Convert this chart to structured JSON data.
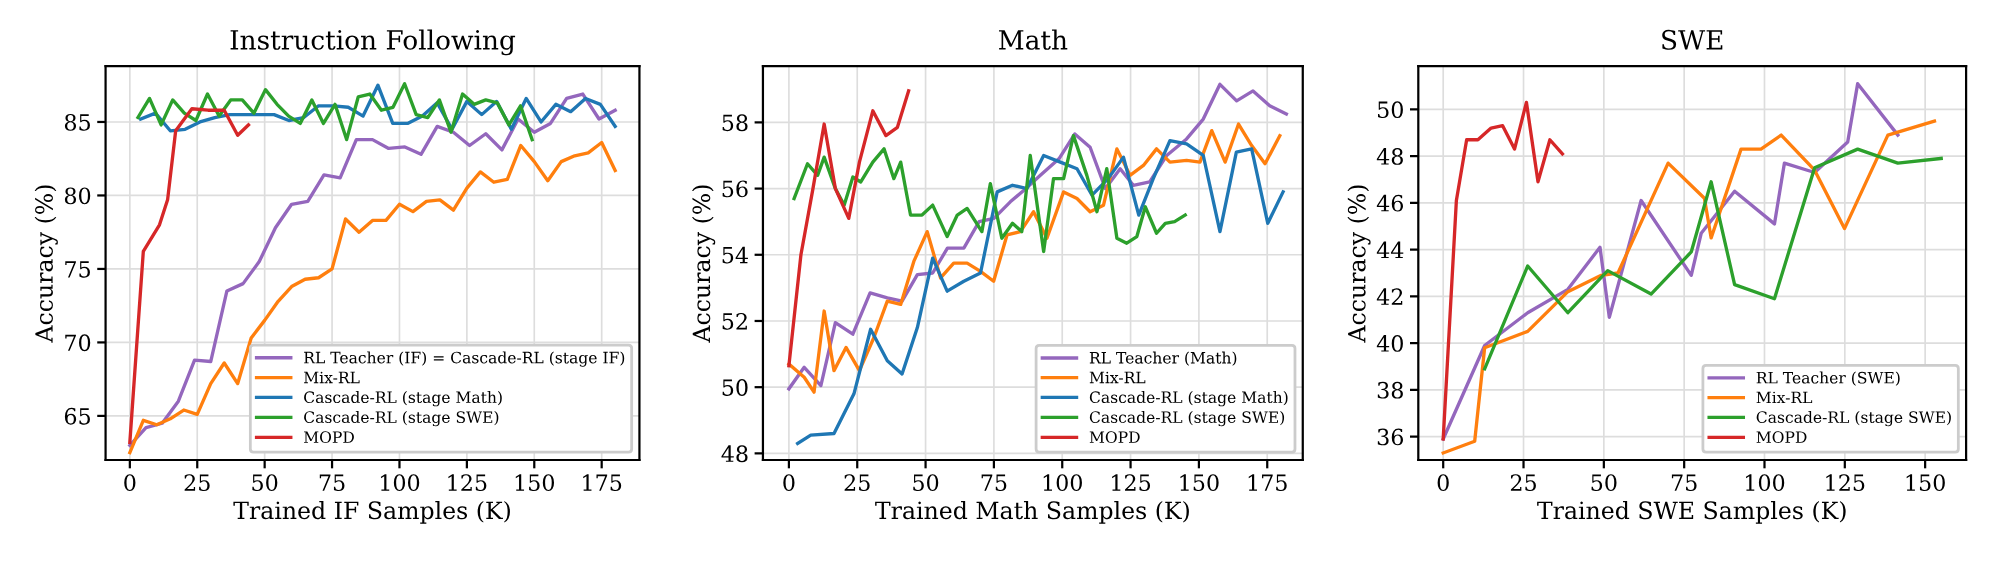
{
  "chart_data": [
    {
      "type": "line",
      "title": "Instruction Following",
      "xlabel": "Trained IF Samples (K)",
      "ylabel": "Accuracy (%)",
      "xlim": [
        -9,
        189
      ],
      "xticks": [
        0,
        25,
        50,
        75,
        100,
        125,
        150,
        175
      ],
      "ylim": [
        62,
        88.8
      ],
      "yticks": [
        65,
        70,
        75,
        80,
        85
      ],
      "grid": true,
      "legend": "bottom right",
      "series": [
        {
          "name": "RL Teacher (IF) = Cascade-RL (stage IF)",
          "color": "#9467bd",
          "x": [
            0,
            6,
            12,
            18,
            24,
            30,
            36,
            42,
            48,
            54,
            60,
            66,
            72,
            78,
            84,
            90,
            96,
            102,
            108,
            114,
            120,
            126,
            132,
            138,
            144,
            150,
            156,
            162,
            168,
            174,
            180
          ],
          "values": [
            63,
            64.2,
            64.5,
            66,
            68.8,
            68.7,
            73.5,
            74,
            75.5,
            77.8,
            79.4,
            79.6,
            81.4,
            81.2,
            83.8,
            83.8,
            83.2,
            83.3,
            82.8,
            84.7,
            84.3,
            83.4,
            84.2,
            83.1,
            85.2,
            84.3,
            84.9,
            86.6,
            86.9,
            85.2,
            85.8
          ]
        },
        {
          "name": "Mix-RL",
          "color": "#ff7f0e",
          "x": [
            0,
            5,
            10,
            15,
            20,
            25,
            30,
            35,
            40,
            45,
            50,
            55,
            60,
            65,
            70,
            75,
            80,
            85,
            90,
            95,
            100,
            105,
            110,
            115,
            120,
            125,
            130,
            135,
            140,
            145,
            150,
            155,
            160,
            165,
            170,
            175,
            180
          ],
          "values": [
            62.5,
            64.7,
            64.4,
            64.8,
            65.4,
            65.1,
            67.2,
            68.6,
            67.2,
            70.3,
            71.5,
            72.8,
            73.8,
            74.3,
            74.4,
            75,
            78.4,
            77.5,
            78.3,
            78.3,
            79.4,
            78.9,
            79.6,
            79.7,
            79,
            80.5,
            81.6,
            80.9,
            81.1,
            83.4,
            82.3,
            81,
            82.3,
            82.7,
            82.9,
            83.6,
            81.7
          ]
        },
        {
          "name": "Cascade-RL (stage Math)",
          "color": "#1f77b4",
          "x": [
            4,
            9.5,
            15,
            20.5,
            26,
            31.5,
            37,
            42.5,
            48,
            53.5,
            59,
            64.5,
            70,
            75.5,
            81,
            86.5,
            92,
            97.5,
            103,
            108.5,
            114,
            119.5,
            125,
            130.5,
            136,
            141.5,
            147,
            152.5,
            158,
            163.5,
            169,
            174.5,
            180
          ],
          "values": [
            85.2,
            85.6,
            84.4,
            84.5,
            85,
            85.3,
            85.5,
            85.5,
            85.5,
            85.5,
            85.1,
            85.3,
            86.1,
            86.1,
            86,
            85.4,
            87.5,
            84.9,
            84.9,
            85.4,
            86.3,
            84.5,
            86.4,
            85.5,
            86.4,
            84.5,
            86.6,
            85,
            86.2,
            85.7,
            86.6,
            86.2,
            84.7
          ]
        },
        {
          "name": "Cascade-RL (stage SWE)",
          "color": "#2ca02c",
          "x": [
            3,
            7.3,
            11.6,
            15.9,
            20.2,
            24.5,
            28.8,
            33.1,
            37.4,
            41.7,
            46,
            50.3,
            54.6,
            58.9,
            63.2,
            67.5,
            71.8,
            76.1,
            80.4,
            84.7,
            89,
            93.3,
            97.6,
            101.9,
            106.2,
            110.5,
            114.8,
            119.1,
            123.4,
            127.7,
            132,
            136.3,
            140.6,
            144.9,
            149.2
          ],
          "values": [
            85.3,
            86.6,
            84.8,
            86.5,
            85.6,
            85.1,
            86.9,
            85.4,
            86.5,
            86.5,
            85.6,
            87.2,
            86.2,
            85.4,
            84.9,
            86.5,
            84.9,
            86.2,
            83.8,
            86.7,
            86.9,
            85.8,
            86,
            87.6,
            85.5,
            85.3,
            86.5,
            84.3,
            86.9,
            86.2,
            86.5,
            86.3,
            84.8,
            86.1,
            83.8
          ]
        },
        {
          "name": "MOPD",
          "color": "#d62728",
          "x": [
            0,
            5,
            11,
            14,
            17,
            23,
            29,
            35,
            40,
            44
          ],
          "values": [
            63.2,
            76.2,
            78,
            79.7,
            84.4,
            85.9,
            85.8,
            85.8,
            84.1,
            84.8
          ]
        }
      ]
    },
    {
      "type": "line",
      "title": "Math",
      "xlabel": "Trained Math Samples (K)",
      "ylabel": "Accuracy (%)",
      "xlim": [
        -9.5,
        188
      ],
      "xticks": [
        0,
        25,
        50,
        75,
        100,
        125,
        150,
        175
      ],
      "ylim": [
        47.8,
        59.7
      ],
      "yticks": [
        48,
        50,
        52,
        54,
        56,
        58
      ],
      "grid": true,
      "legend": "bottom right",
      "series": [
        {
          "name": "RL Teacher (Math)",
          "color": "#9467bd",
          "x": [
            0,
            5.6,
            11.7,
            17,
            23.4,
            29.7,
            36,
            41.4,
            47,
            52.6,
            58,
            64,
            69.6,
            75,
            81,
            86,
            92,
            98.8,
            104.6,
            110.2,
            115.8,
            121.2,
            126,
            132,
            138.2,
            145.5,
            151.6,
            157.7,
            163.8,
            169.8,
            175.9,
            182
          ],
          "values": [
            49.95,
            50.6,
            50.05,
            51.95,
            51.6,
            52.85,
            52.7,
            52.6,
            53.4,
            53.45,
            54.2,
            54.2,
            55,
            55.1,
            55.6,
            55.95,
            56.4,
            56.9,
            57.65,
            57.25,
            56,
            56.6,
            56.1,
            56.2,
            57,
            57.5,
            58.1,
            59.15,
            58.65,
            58.95,
            58.5,
            58.25
          ]
        },
        {
          "name": "Mix-RL",
          "color": "#ff7f0e",
          "x": [
            0,
            5.6,
            9.2,
            12.9,
            16.5,
            20.9,
            25.8,
            31.1,
            36,
            40.9,
            45.7,
            50.6,
            55.5,
            60.3,
            65.2,
            70.1,
            74.9,
            79.8,
            84.7,
            89.5,
            94.4,
            100.5,
            105.4,
            110.2,
            115.1,
            120,
            124.8,
            129.7,
            134.5,
            139.4,
            145.5,
            150.4,
            154.7,
            159.6,
            164.5,
            169.3,
            174.2,
            179.6
          ],
          "values": [
            50.7,
            50.3,
            49.85,
            52.3,
            50.5,
            51.2,
            50.5,
            51.5,
            52.6,
            52.5,
            53.8,
            54.7,
            53.3,
            53.75,
            53.75,
            53.5,
            53.2,
            54.6,
            54.7,
            55.3,
            54.5,
            55.9,
            55.7,
            55.3,
            55.5,
            57.2,
            56.4,
            56.7,
            57.2,
            56.8,
            56.85,
            56.8,
            57.75,
            56.8,
            57.95,
            57.3,
            56.75,
            57.6
          ]
        },
        {
          "name": "Cascade-RL (stage Math)",
          "color": "#1f77b4",
          "x": [
            3.2,
            8,
            16.5,
            23.8,
            29.9,
            36,
            41.4,
            47,
            52.6,
            57.9,
            64,
            70.1,
            76.2,
            81.8,
            87.1,
            93.2,
            99.3,
            105.4,
            110.9,
            116.8,
            122.4,
            128,
            133.3,
            139.4,
            145.5,
            151.6,
            157.7,
            163.7,
            169.3,
            175.2,
            180.8
          ],
          "values": [
            48.3,
            48.55,
            48.6,
            49.8,
            51.75,
            50.8,
            50.4,
            51.8,
            53.9,
            52.9,
            53.2,
            53.45,
            55.9,
            56.1,
            56,
            57,
            56.8,
            56.6,
            55.8,
            56.3,
            56.95,
            55.2,
            56.3,
            57.45,
            57.35,
            57,
            54.7,
            57.1,
            57.2,
            54.95,
            55.9
          ]
        },
        {
          "name": "Cascade-RL (stage SWE)",
          "color": "#2ca02c",
          "x": [
            1.9,
            6.8,
            10.5,
            12.9,
            17,
            20.2,
            23.4,
            26.3,
            30.7,
            34.8,
            38.4,
            40.9,
            44.5,
            48.7,
            52.6,
            57.9,
            61.6,
            65.2,
            70.6,
            73.7,
            77.9,
            81.8,
            85.2,
            88.3,
            93.2,
            96.8,
            100.5,
            104.1,
            109,
            112.7,
            116.3,
            120,
            123.6,
            127.3,
            130.4,
            134.5,
            137.7,
            141.1,
            145
          ],
          "values": [
            55.7,
            56.75,
            56.4,
            56.95,
            56,
            55.5,
            56.35,
            56.2,
            56.8,
            57.2,
            56.3,
            56.8,
            55.2,
            55.2,
            55.5,
            54.55,
            55.2,
            55.4,
            54.7,
            56.15,
            54.5,
            54.95,
            54.7,
            57,
            54.1,
            56.3,
            56.3,
            57.6,
            56.4,
            55.3,
            56.6,
            54.5,
            54.35,
            54.55,
            55.45,
            54.65,
            54.95,
            55,
            55.2
          ]
        },
        {
          "name": "MOPD",
          "color": "#d62728",
          "x": [
            0,
            4.4,
            8.8,
            12.9,
            17,
            21.9,
            25.8,
            30.7,
            35.5,
            39.7,
            43.8
          ],
          "values": [
            50.65,
            54,
            56,
            57.95,
            56,
            55.1,
            56.8,
            58.35,
            57.6,
            57.85,
            58.95
          ]
        }
      ]
    },
    {
      "type": "line",
      "title": "SWE",
      "xlabel": "Trained SWE Samples (K)",
      "ylabel": "Accuracy (%)",
      "xlim": [
        -7.75,
        162.75
      ],
      "xticks": [
        0,
        25,
        50,
        75,
        100,
        125,
        150
      ],
      "ylim": [
        35,
        51.85
      ],
      "yticks": [
        36,
        38,
        40,
        42,
        44,
        46,
        48,
        50
      ],
      "grid": true,
      "legend": "bottom right",
      "series": [
        {
          "name": "RL Teacher (SWE)",
          "color": "#9467bd",
          "x": [
            0,
            12.9,
            26.3,
            38.8,
            48.8,
            51.7,
            61.6,
            77.2,
            80.3,
            90.7,
            103.1,
            106.2,
            115.6,
            125.9,
            129,
            141.5
          ],
          "values": [
            35.9,
            39.9,
            41.3,
            42.3,
            44.1,
            41.1,
            46.1,
            42.9,
            44.7,
            46.5,
            45.1,
            47.7,
            47.3,
            48.6,
            51.1,
            48.9
          ]
        },
        {
          "name": "Mix-RL",
          "color": "#ff7f0e",
          "x": [
            0,
            9.8,
            12.9,
            26.3,
            38.8,
            49.2,
            54.4,
            70,
            81.3,
            83.4,
            92.7,
            98.9,
            105.2,
            115.6,
            124.9,
            138.4,
            152.9
          ],
          "values": [
            35.3,
            35.8,
            39.8,
            40.5,
            42.2,
            42.9,
            43,
            47.7,
            46.2,
            44.5,
            48.3,
            48.3,
            48.9,
            47.4,
            44.9,
            48.9,
            49.5
          ]
        },
        {
          "name": "Cascade-RL (stage SWE)",
          "color": "#2ca02c",
          "x": [
            12.9,
            26.3,
            38.8,
            51.2,
            64.7,
            77.2,
            83.4,
            90.7,
            103.1,
            115.6,
            129,
            141.5,
            155
          ],
          "values": [
            38.9,
            43.3,
            41.3,
            43.1,
            42.1,
            43.9,
            46.9,
            42.5,
            41.9,
            47.5,
            48.3,
            47.7,
            47.9
          ]
        },
        {
          "name": "MOPD",
          "color": "#d62728",
          "x": [
            0,
            4.1,
            7.3,
            10.8,
            14.9,
            18.5,
            22.2,
            25.9,
            29.5,
            33.2,
            37.1
          ],
          "values": [
            35.9,
            46.1,
            48.7,
            48.7,
            49.2,
            49.3,
            48.3,
            50.3,
            46.9,
            48.7,
            48.1
          ]
        }
      ]
    }
  ]
}
